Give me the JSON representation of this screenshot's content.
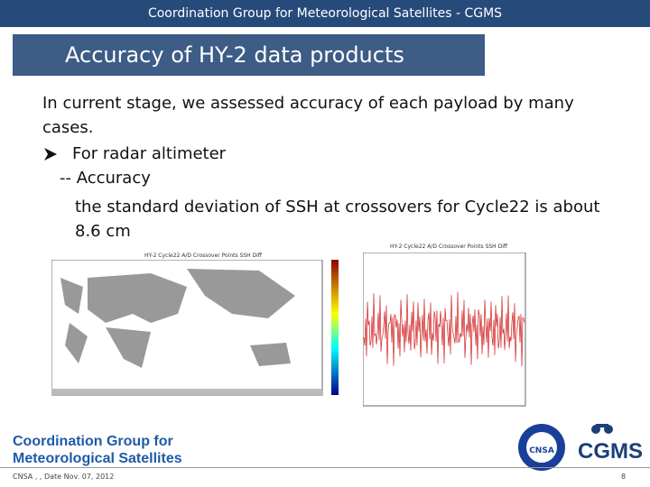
{
  "header": {
    "title": "Coordination Group for Meteorological Satellites - CGMS"
  },
  "slide": {
    "title": "Accuracy of HY-2 data products",
    "intro": "In current stage, we assessed accuracy of each payload by many cases.",
    "bullet": "For radar altimeter",
    "sub": "-- Accuracy",
    "detail": "the standard deviation of SSH at crossovers for Cycle22 is about 8.6 cm",
    "figures": [
      "HY-2 Cycle22 A/D Crossover Points SSH Diff",
      "HY-2 Cycle22 A/D Crossover Points SSH Diff"
    ]
  },
  "logo": {
    "line1": "Coordination Group for",
    "line2": "Meteorological Satellites",
    "cgms": "CGMS",
    "agency": "CNSA"
  },
  "footer": {
    "left": "CNSA , , Date Nov. 07, 2012",
    "page": "8"
  }
}
